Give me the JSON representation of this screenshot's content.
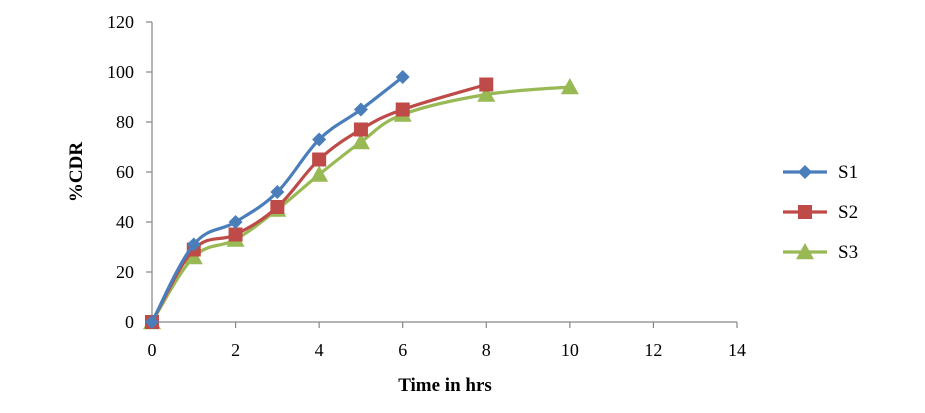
{
  "chart_data": {
    "type": "line",
    "title": "",
    "xlabel": "Time in hrs",
    "ylabel": "%CDR",
    "xlim": [
      0,
      14
    ],
    "ylim": [
      0,
      120
    ],
    "xticks": [
      0,
      2,
      4,
      6,
      8,
      10,
      12,
      14
    ],
    "yticks": [
      0,
      20,
      40,
      60,
      80,
      100,
      120
    ],
    "grid": false,
    "legend_position": "right",
    "series": [
      {
        "name": "S1",
        "color": "#4a7ebb",
        "marker": "diamond",
        "x": [
          0,
          1,
          2,
          3,
          4,
          5,
          6
        ],
        "y": [
          0,
          31,
          40,
          52,
          73,
          85,
          98
        ]
      },
      {
        "name": "S2",
        "color": "#be4b48",
        "marker": "square",
        "x": [
          0,
          1,
          2,
          3,
          4,
          5,
          6,
          8
        ],
        "y": [
          0,
          29,
          35,
          46,
          65,
          77,
          85,
          95
        ]
      },
      {
        "name": "S3",
        "color": "#98b954",
        "marker": "triangle",
        "x": [
          0,
          1,
          2,
          3,
          4,
          5,
          6,
          8,
          10
        ],
        "y": [
          0,
          26,
          33,
          45,
          59,
          72,
          83,
          91,
          94
        ]
      }
    ]
  }
}
